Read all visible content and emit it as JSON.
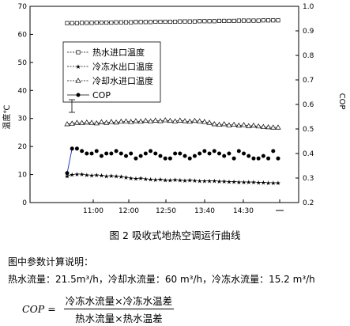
{
  "chart_data": {
    "type": "line",
    "x_ticks": [
      "11:00",
      "12:00",
      "12:50",
      "13:40",
      "14:30"
    ],
    "y_left": {
      "label": "温度℃",
      "min": 0,
      "max": 70,
      "ticks": [
        0,
        10,
        20,
        30,
        40,
        50,
        60,
        70
      ]
    },
    "y_right": {
      "label": "COP",
      "min": 0.2,
      "max": 1.0,
      "ticks": [
        "0.2",
        "0.3",
        "0.4",
        "0.5",
        "0.6",
        "0.7",
        "0.8",
        "0.9",
        "1.0"
      ]
    },
    "legend_position": "upper-left",
    "series": [
      {
        "name": "热水进口温度",
        "axis": "left",
        "marker": "open-square",
        "values": [
          64.0,
          64.0,
          64.0,
          64.1,
          64.1,
          64.1,
          64.2,
          64.2,
          64.2,
          64.2,
          64.3,
          64.3,
          64.3,
          64.3,
          64.4,
          64.4,
          64.4,
          64.4,
          64.5,
          64.5,
          64.5,
          64.5,
          64.5,
          64.6,
          64.6,
          64.6,
          64.6,
          64.7,
          64.7,
          64.7,
          64.7,
          64.8,
          64.8,
          64.8,
          64.8,
          64.9,
          64.9,
          64.9,
          64.9,
          64.9,
          65.0,
          65.0,
          65.0,
          65.0
        ]
      },
      {
        "name": "冷冻水出口温度",
        "axis": "left",
        "marker": "star",
        "values": [
          9.5,
          10.0,
          10.2,
          10.1,
          9.9,
          9.8,
          9.9,
          9.7,
          9.5,
          9.6,
          9.4,
          9.3,
          9.0,
          8.8,
          8.6,
          8.7,
          8.5,
          8.3,
          8.2,
          8.3,
          8.1,
          8.0,
          8.2,
          8.0,
          7.9,
          8.0,
          7.9,
          7.8,
          7.8,
          7.7,
          7.8,
          7.6,
          7.6,
          7.5,
          7.5,
          7.4,
          7.4,
          7.3,
          7.3,
          7.2,
          7.2,
          7.1,
          7.1,
          7.0
        ]
      },
      {
        "name": "冷却水进口温度",
        "axis": "left",
        "marker": "open-triangle",
        "values": [
          28.0,
          28.2,
          28.5,
          28.4,
          28.6,
          28.5,
          28.3,
          28.7,
          28.5,
          28.8,
          28.6,
          28.9,
          29.0,
          28.8,
          29.1,
          28.9,
          29.2,
          29.0,
          29.3,
          29.1,
          29.4,
          29.2,
          29.0,
          29.3,
          29.1,
          28.9,
          29.2,
          29.0,
          28.8,
          28.5,
          28.0,
          27.8,
          28.0,
          27.6,
          27.8,
          27.5,
          27.7,
          27.3,
          27.5,
          27.2,
          27.0,
          26.9,
          26.8,
          26.8
        ]
      },
      {
        "name": "COP",
        "axis": "right",
        "marker": "filled-circle",
        "values": [
          0.32,
          0.42,
          0.42,
          0.41,
          0.4,
          0.4,
          0.41,
          0.39,
          0.4,
          0.4,
          0.41,
          0.4,
          0.39,
          0.4,
          0.38,
          0.39,
          0.4,
          0.41,
          0.4,
          0.39,
          0.38,
          0.38,
          0.4,
          0.4,
          0.39,
          0.38,
          0.39,
          0.4,
          0.41,
          0.4,
          0.41,
          0.4,
          0.39,
          0.4,
          0.38,
          0.41,
          0.4,
          0.39,
          0.38,
          0.38,
          0.39,
          0.38,
          0.41,
          0.38
        ]
      }
    ],
    "annotations": [
      "I"
    ]
  },
  "caption": "图 2 吸收式地热空调运行曲线",
  "notes": {
    "heading": "图中参数计算说明：",
    "flows": "热水流量：21.5m³/h，冷却水流量：60 m³/h，冷冻水流量：15.2 m³/h"
  },
  "formula": {
    "lhs": "COP =",
    "numerator": "冷冻水流量×冷冻水温差",
    "denominator": "热水流量×热水温差"
  }
}
